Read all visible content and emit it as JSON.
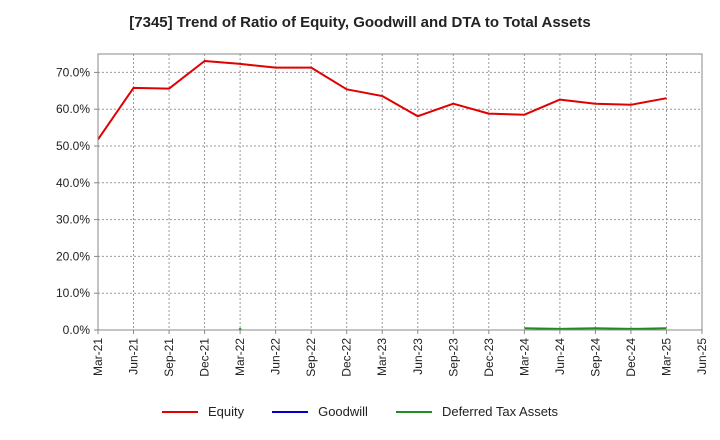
{
  "chart_data": {
    "type": "line",
    "title": "[7345]  Trend of Ratio of Equity, Goodwill and DTA to Total Assets",
    "x_labels": [
      "Mar-21",
      "Jun-21",
      "Sep-21",
      "Dec-21",
      "Mar-22",
      "Jun-22",
      "Sep-22",
      "Dec-22",
      "Mar-23",
      "Jun-23",
      "Sep-23",
      "Dec-23",
      "Mar-24",
      "Jun-24",
      "Sep-24",
      "Dec-24",
      "Mar-25",
      "Jun-25"
    ],
    "y_ticks": [
      "0.0%",
      "10.0%",
      "20.0%",
      "30.0%",
      "40.0%",
      "50.0%",
      "60.0%",
      "70.0%"
    ],
    "ylim": [
      0,
      75
    ],
    "grid": true,
    "legend_position": "bottom",
    "series": [
      {
        "name": "Equity",
        "color": "#e00000",
        "values": [
          51.8,
          65.8,
          65.6,
          73.1,
          72.3,
          71.3,
          71.3,
          65.4,
          63.6,
          58.1,
          61.5,
          58.8,
          58.5,
          62.6,
          61.5,
          61.2,
          63.0,
          null
        ]
      },
      {
        "name": "Goodwill",
        "color": "#0000cc",
        "values": [
          null,
          null,
          null,
          null,
          null,
          null,
          null,
          null,
          null,
          null,
          null,
          null,
          null,
          null,
          null,
          null,
          null,
          null
        ]
      },
      {
        "name": "Deferred Tax Assets",
        "color": "#228b22",
        "values": [
          null,
          null,
          null,
          null,
          0.2,
          null,
          null,
          null,
          null,
          null,
          null,
          null,
          0.5,
          0.3,
          0.5,
          0.3,
          0.5,
          null
        ]
      }
    ]
  }
}
